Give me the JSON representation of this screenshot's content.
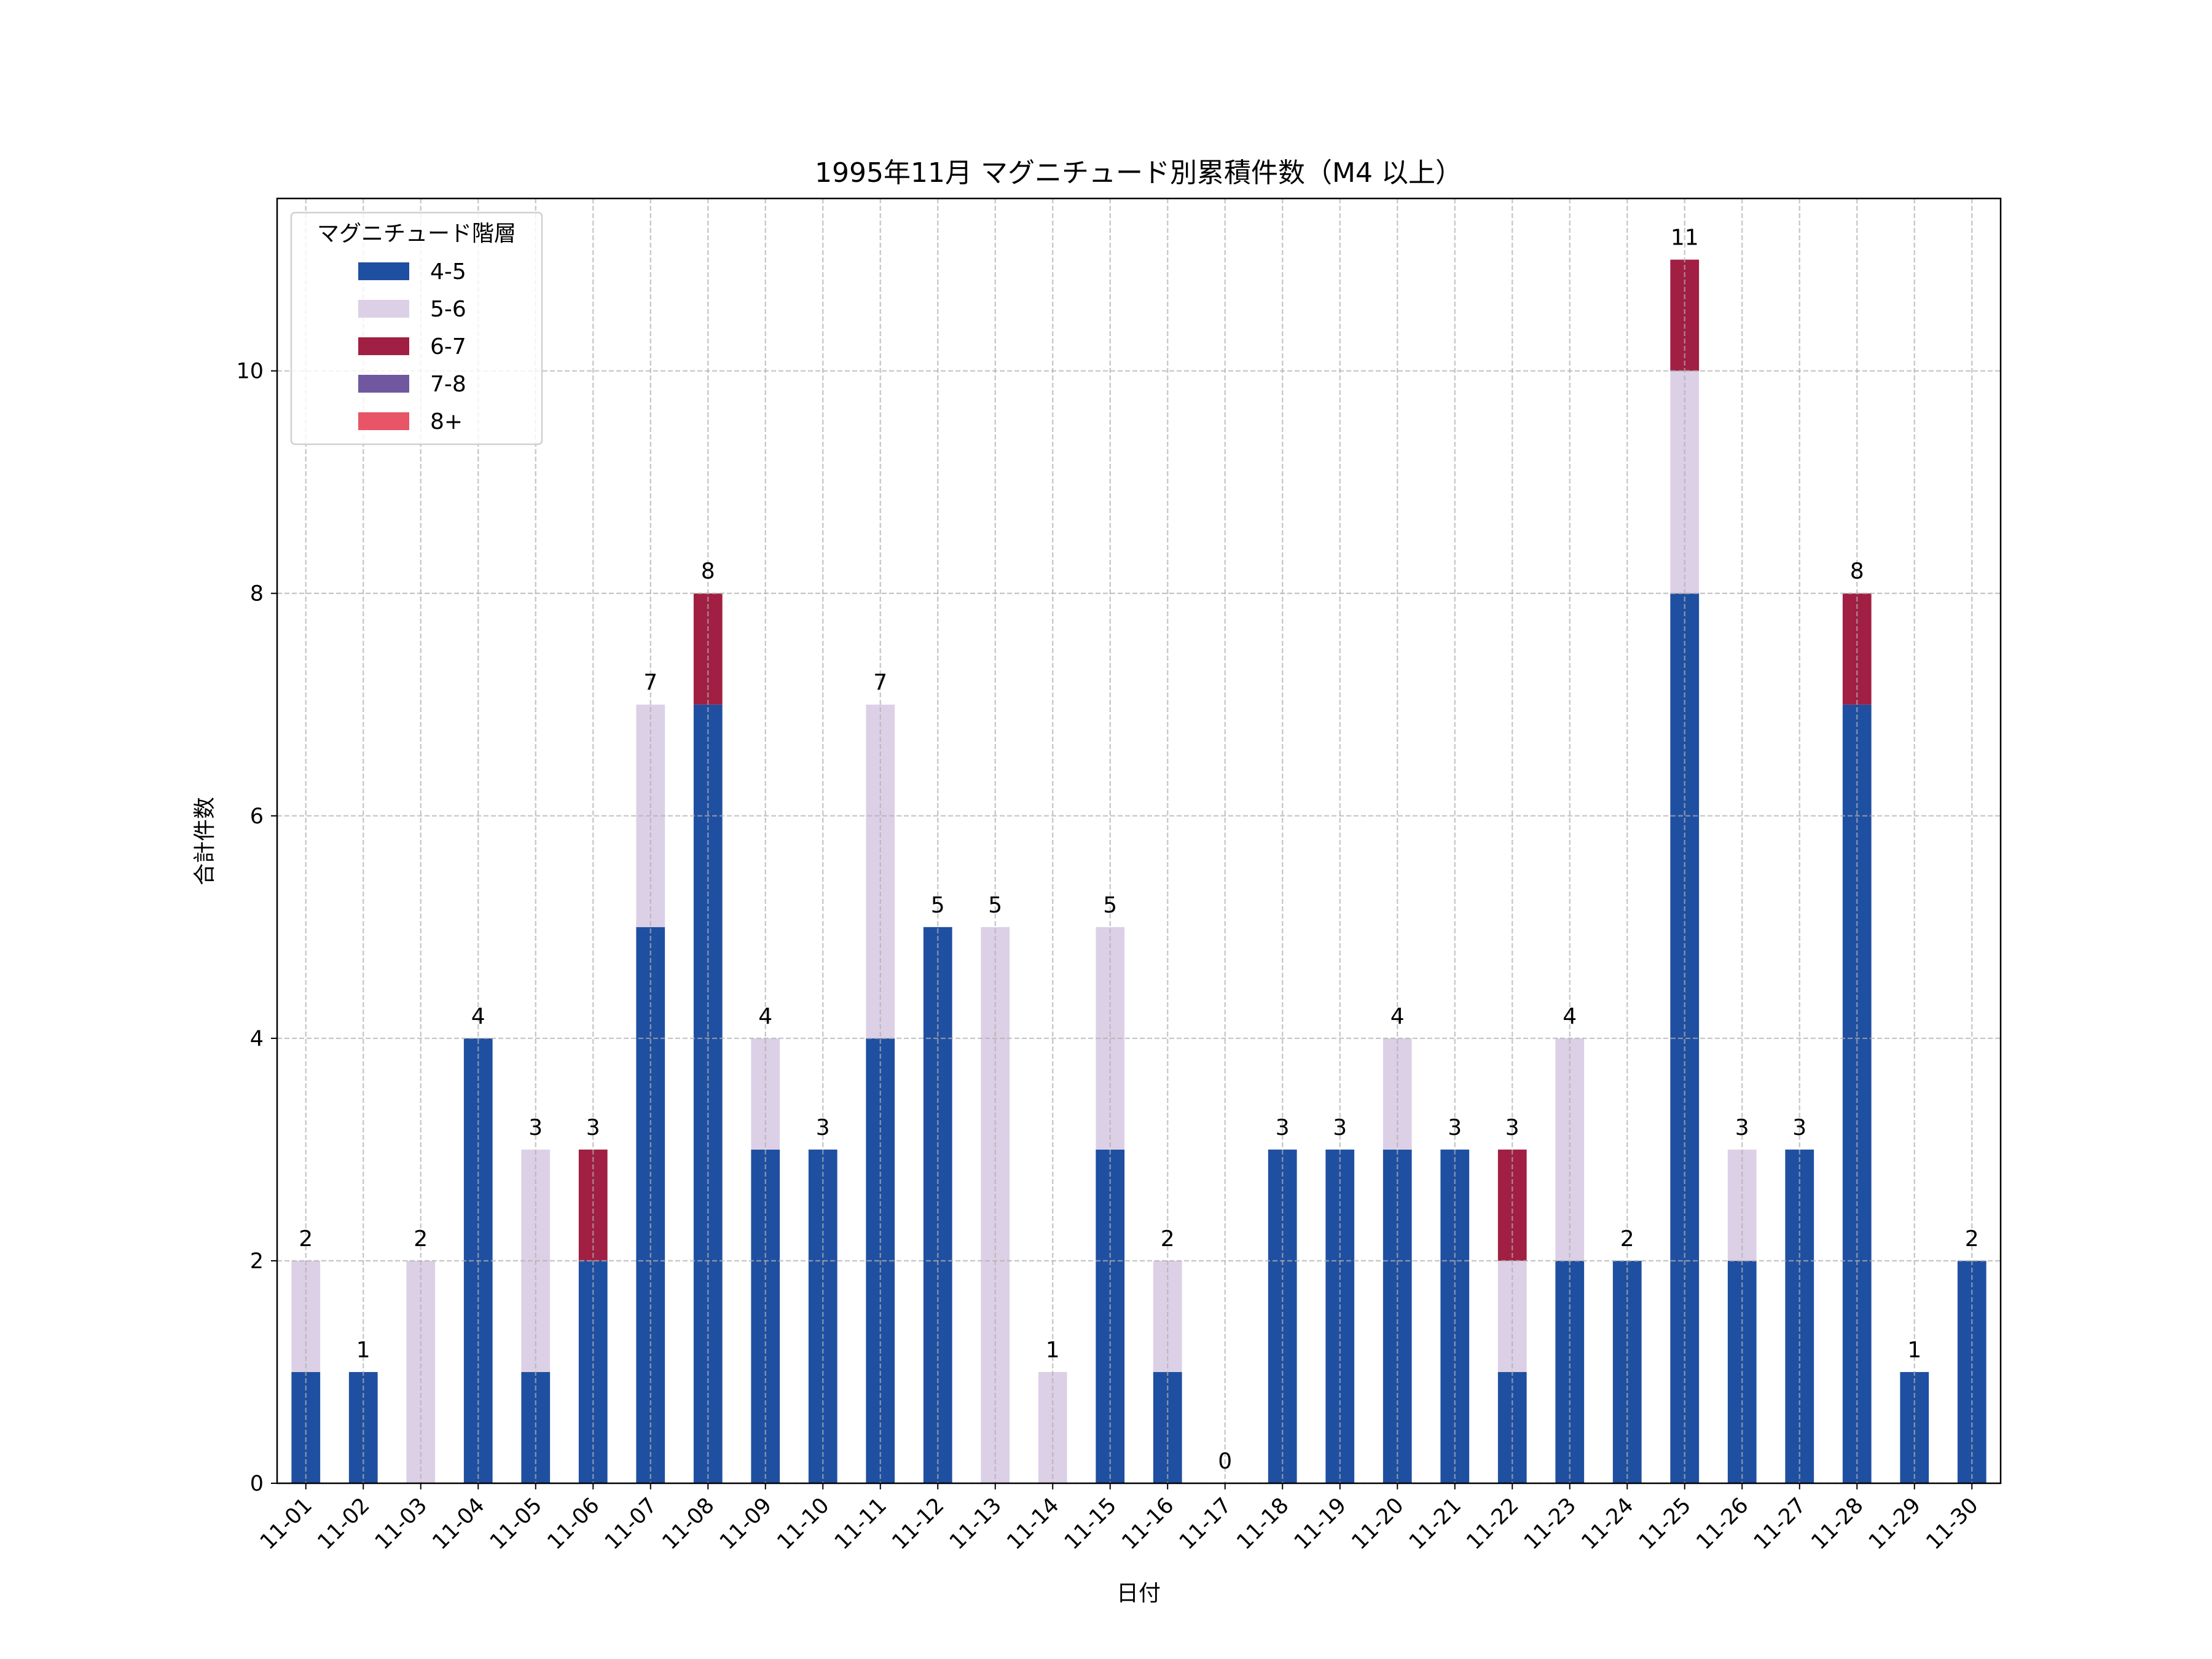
{
  "chart_data": {
    "type": "bar",
    "stacked": true,
    "title": "1995年11月 マグニチュード別累積件数（M4 以上）",
    "xlabel": "日付",
    "ylabel": "合計件数",
    "ylim": [
      0,
      11.55
    ],
    "yticks": [
      0,
      2,
      4,
      6,
      8,
      10
    ],
    "grid": true,
    "legend": {
      "title": "マグニチュード階層",
      "placement": "top-left"
    },
    "categories": [
      "11-01",
      "11-02",
      "11-03",
      "11-04",
      "11-05",
      "11-06",
      "11-07",
      "11-08",
      "11-09",
      "11-10",
      "11-11",
      "11-12",
      "11-13",
      "11-14",
      "11-15",
      "11-16",
      "11-17",
      "11-18",
      "11-19",
      "11-20",
      "11-21",
      "11-22",
      "11-23",
      "11-24",
      "11-25",
      "11-26",
      "11-27",
      "11-28",
      "11-29",
      "11-30"
    ],
    "series": [
      {
        "name": "4-5",
        "color": "#1f4fa0",
        "values": [
          1,
          1,
          0,
          4,
          1,
          2,
          5,
          7,
          3,
          3,
          4,
          5,
          0,
          0,
          3,
          1,
          0,
          3,
          3,
          3,
          3,
          1,
          2,
          2,
          8,
          2,
          3,
          7,
          1,
          2
        ]
      },
      {
        "name": "5-6",
        "color": "#dcd0e6",
        "values": [
          1,
          0,
          2,
          0,
          2,
          0,
          2,
          0,
          1,
          0,
          3,
          0,
          5,
          1,
          2,
          1,
          0,
          0,
          0,
          1,
          0,
          1,
          2,
          0,
          2,
          1,
          0,
          0,
          0,
          0
        ]
      },
      {
        "name": "6-7",
        "color": "#a01f42",
        "values": [
          0,
          0,
          0,
          0,
          0,
          1,
          0,
          1,
          0,
          0,
          0,
          0,
          0,
          0,
          0,
          0,
          0,
          0,
          0,
          0,
          0,
          1,
          0,
          0,
          1,
          0,
          0,
          1,
          0,
          0
        ]
      },
      {
        "name": "7-8",
        "color": "#7058a0",
        "values": [
          0,
          0,
          0,
          0,
          0,
          0,
          0,
          0,
          0,
          0,
          0,
          0,
          0,
          0,
          0,
          0,
          0,
          0,
          0,
          0,
          0,
          0,
          0,
          0,
          0,
          0,
          0,
          0,
          0,
          0
        ]
      },
      {
        "name": "8+",
        "color": "#e85566",
        "values": [
          0,
          0,
          0,
          0,
          0,
          0,
          0,
          0,
          0,
          0,
          0,
          0,
          0,
          0,
          0,
          0,
          0,
          0,
          0,
          0,
          0,
          0,
          0,
          0,
          0,
          0,
          0,
          0,
          0,
          0
        ]
      }
    ],
    "totals": [
      2,
      1,
      2,
      4,
      3,
      3,
      7,
      8,
      4,
      3,
      7,
      5,
      5,
      1,
      5,
      2,
      0,
      3,
      3,
      4,
      3,
      3,
      4,
      2,
      11,
      3,
      3,
      8,
      1,
      2
    ]
  }
}
